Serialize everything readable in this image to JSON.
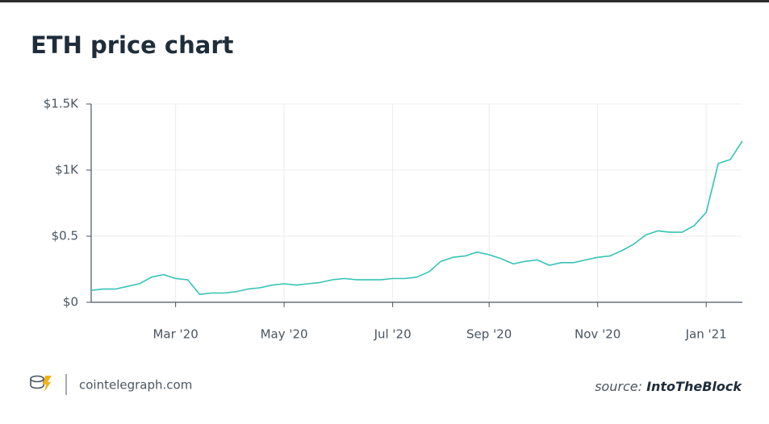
{
  "chart_data": {
    "type": "line",
    "title": "ETH price chart",
    "categories": [
      null,
      null,
      null,
      null,
      null,
      null,
      null,
      "Mar '20",
      null,
      null,
      null,
      null,
      null,
      null,
      null,
      null,
      "May '20",
      null,
      null,
      null,
      null,
      null,
      null,
      null,
      null,
      "Jul '20",
      null,
      null,
      null,
      null,
      null,
      null,
      null,
      "Sep '20",
      null,
      null,
      null,
      null,
      null,
      null,
      null,
      null,
      "Nov '20",
      null,
      null,
      null,
      null,
      null,
      null,
      null,
      null,
      "Jan '21",
      null,
      null,
      null
    ],
    "values": [
      0.09,
      0.1,
      0.1,
      0.12,
      0.14,
      0.19,
      0.21,
      0.18,
      0.17,
      0.06,
      0.07,
      0.07,
      0.08,
      0.1,
      0.11,
      0.13,
      0.14,
      0.13,
      0.14,
      0.15,
      0.17,
      0.18,
      0.17,
      0.17,
      0.17,
      0.18,
      0.18,
      0.19,
      0.23,
      0.31,
      0.34,
      0.35,
      0.38,
      0.36,
      0.33,
      0.29,
      0.31,
      0.32,
      0.28,
      0.3,
      0.3,
      0.32,
      0.34,
      0.35,
      0.39,
      0.44,
      0.51,
      0.54,
      0.53,
      0.53,
      0.58,
      0.68,
      1.05,
      1.08,
      1.22
    ],
    "color": "#35c3b5",
    "ylim": [
      0,
      1.5
    ],
    "yticks": [
      {
        "value": 0,
        "label": "$0"
      },
      {
        "value": 0.5,
        "label": "$0.5"
      },
      {
        "value": 1,
        "label": "$1K"
      },
      {
        "value": 1.5,
        "label": "$1.5K"
      }
    ],
    "grid": true,
    "site": "cointelegraph.com",
    "source_label": "source:",
    "source_name": "IntoTheBlock"
  }
}
